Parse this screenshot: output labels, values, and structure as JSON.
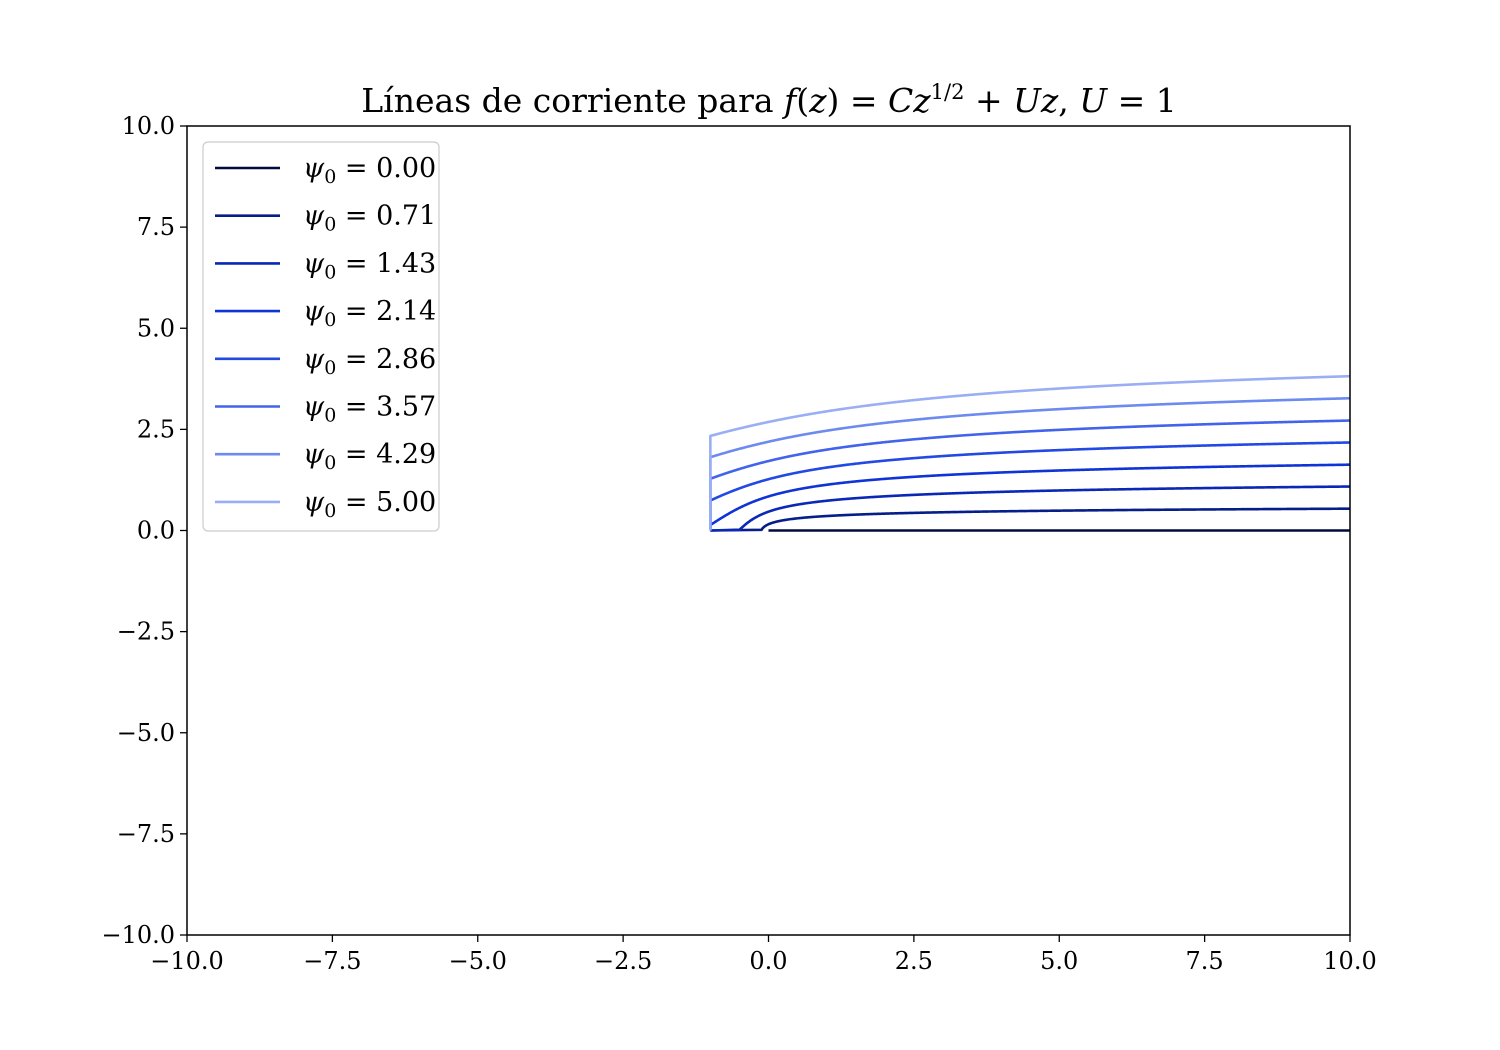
{
  "chart_data": {
    "type": "line",
    "title": {
      "prefix": "Líneas de corriente para ",
      "f": "f",
      "open": "(",
      "z": "z",
      "close": ")",
      "eq": " = ",
      "C": "C",
      "z2": "z",
      "exp": "1/2",
      "plus": " + ",
      "U": "U",
      "z3": "z",
      "comma": ", ",
      "U2": "U",
      "eq2": " = ",
      "one": "1"
    },
    "xlabel": "",
    "ylabel": "",
    "xlim": [
      -10,
      10
    ],
    "ylim": [
      -10,
      10
    ],
    "x_ticks": [
      -10,
      -7.5,
      -5,
      -2.5,
      0,
      2.5,
      5,
      7.5,
      10
    ],
    "y_ticks": [
      -10,
      -7.5,
      -5,
      -2.5,
      0,
      2.5,
      5,
      7.5,
      10
    ],
    "x_tick_labels": [
      "−10.0",
      "−7.5",
      "−5.0",
      "−2.5",
      "0.0",
      "2.5",
      "5.0",
      "7.5",
      "10.0"
    ],
    "y_tick_labels": [
      "−10.0",
      "−7.5",
      "−5.0",
      "−2.5",
      "0.0",
      "2.5",
      "5.0",
      "7.5",
      "10.0"
    ],
    "grid": false,
    "legend_position": "top-left",
    "legend_symbol": "ψ",
    "legend_subscript": "0",
    "legend_eq": " = ",
    "series": [
      {
        "name": "0.00",
        "psi": 0.0,
        "color": "#000b3d"
      },
      {
        "name": "0.71",
        "psi": 0.71,
        "color": "#051e8a"
      },
      {
        "name": "1.43",
        "psi": 1.43,
        "color": "#0a28b5"
      },
      {
        "name": "2.14",
        "psi": 2.14,
        "color": "#0f34d6"
      },
      {
        "name": "2.86",
        "psi": 2.86,
        "color": "#2249e4"
      },
      {
        "name": "3.57",
        "psi": 3.57,
        "color": "#4264ec"
      },
      {
        "name": "4.29",
        "psi": 4.29,
        "color": "#6c8af0"
      },
      {
        "name": "5.00",
        "psi": 5.0,
        "color": "#9aaef5"
      }
    ]
  }
}
